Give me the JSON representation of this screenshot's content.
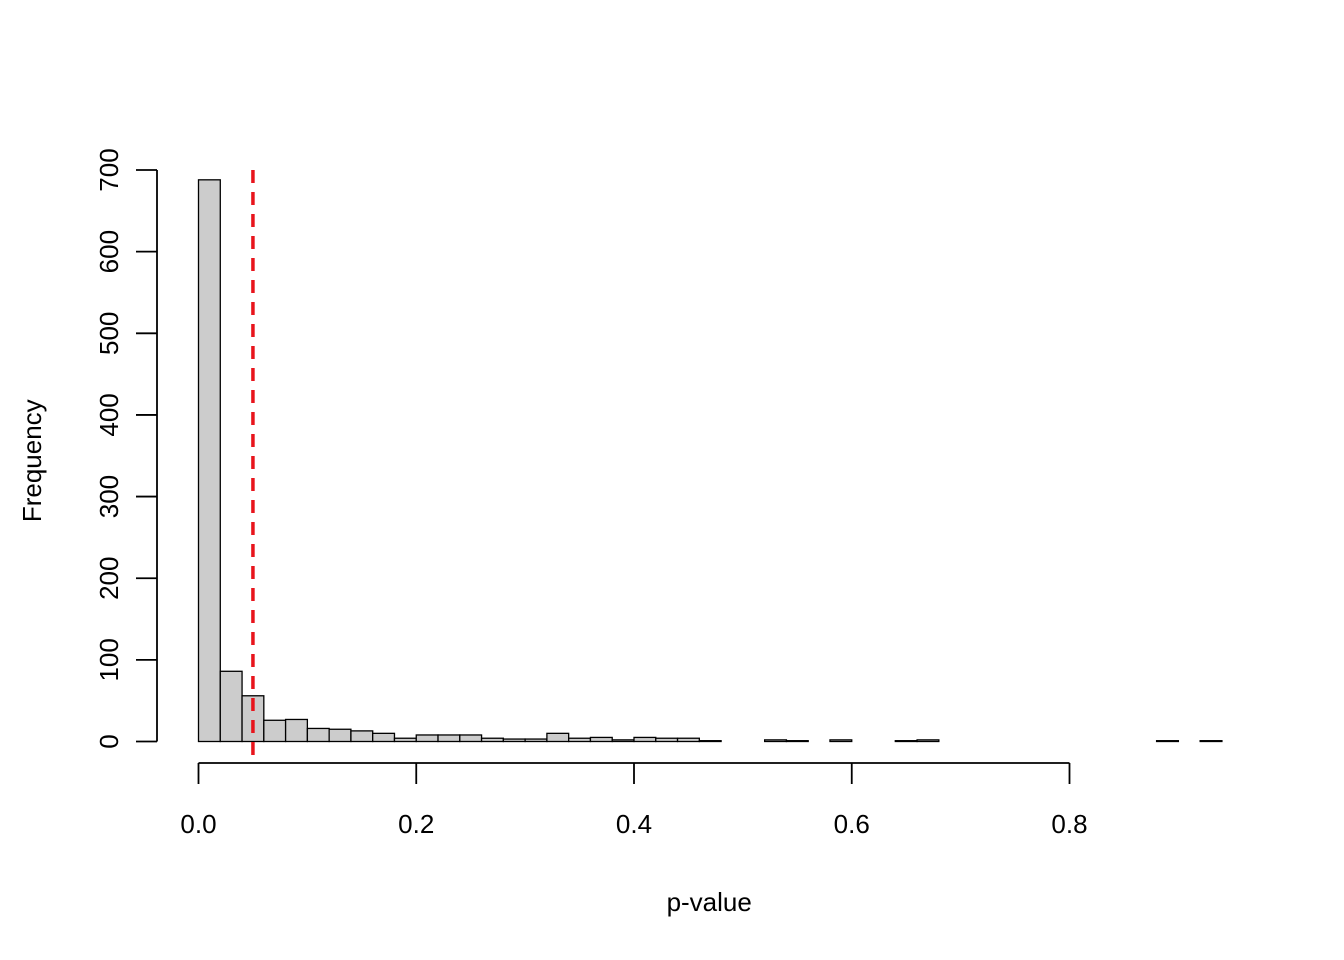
{
  "chart_data": {
    "type": "bar",
    "title": "",
    "xlabel": "p-value",
    "ylabel": "Frequency",
    "bin_width": 0.02,
    "xlim": [
      0,
      0.94
    ],
    "ylim": [
      0,
      700
    ],
    "x_axis_ticks": [
      0.0,
      0.2,
      0.4,
      0.6,
      0.8
    ],
    "x_axis_tick_labels": [
      "0.0",
      "0.2",
      "0.4",
      "0.6",
      "0.8"
    ],
    "y_axis_ticks": [
      0,
      100,
      200,
      300,
      400,
      500,
      600,
      700
    ],
    "y_axis_tick_labels": [
      "0",
      "100",
      "200",
      "300",
      "400",
      "500",
      "600",
      "700"
    ],
    "bin_starts": [
      0.0,
      0.02,
      0.04,
      0.06,
      0.08,
      0.1,
      0.12,
      0.14,
      0.16,
      0.18,
      0.2,
      0.22,
      0.24,
      0.26,
      0.28,
      0.3,
      0.32,
      0.34,
      0.36,
      0.38,
      0.4,
      0.42,
      0.44,
      0.46,
      0.48,
      0.5,
      0.52,
      0.54,
      0.56,
      0.58,
      0.6,
      0.62,
      0.64,
      0.66,
      0.68,
      0.7,
      0.72,
      0.74,
      0.76,
      0.78,
      0.8,
      0.82,
      0.84,
      0.86,
      0.88,
      0.9,
      0.92
    ],
    "frequencies": [
      688,
      86,
      56,
      26,
      27,
      16,
      15,
      13,
      10,
      4,
      8,
      8,
      8,
      4,
      3,
      3,
      10,
      4,
      5,
      2,
      5,
      4,
      4,
      1,
      0,
      0,
      2,
      1,
      0,
      2,
      0,
      0,
      1,
      2,
      0,
      0,
      0,
      0,
      0,
      0,
      0,
      0,
      0,
      0,
      1,
      0,
      1
    ],
    "reference_line": {
      "x": 0.05,
      "style": "dashed",
      "color": "#e8141c"
    },
    "colors": {
      "bar_fill": "#cccccc",
      "bar_stroke": "#000000",
      "axis": "#000000"
    },
    "grid": false,
    "legend": "none"
  }
}
